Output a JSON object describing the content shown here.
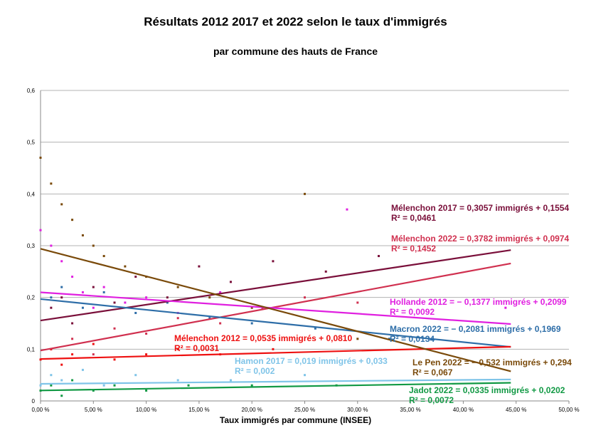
{
  "title": "Résultats 2012 2017 et 2022 selon le taux d'immigrés",
  "subtitle": "par commune des hauts de France",
  "chart_data": {
    "type": "scatter",
    "title": "Résultats 2012 2017 et 2022 selon le taux d'immigrés",
    "subtitle": "par commune des hauts de France",
    "xlabel": "Taux immigrés par commune (INSEE)",
    "ylabel": "",
    "xlim": [
      0,
      0.5
    ],
    "ylim": [
      0,
      0.6
    ],
    "x_ticks": [
      "0,00 %",
      "5,00 %",
      "10,00 %",
      "15,00 %",
      "20,00 %",
      "25,00 %",
      "30,00 %",
      "35,00 %",
      "40,00 %",
      "45,00 %",
      "50,00 %"
    ],
    "y_ticks": [
      "0",
      "0,1",
      "0,2",
      "0,3",
      "0,4",
      "0,5",
      "0,6"
    ],
    "grid": true,
    "series": [
      {
        "color": "#7a0f3a",
        "slope": 0.3057,
        "intercept": 0.1554,
        "equation": "Mélenchon 2017 = 0,3057 immigrés + 0,1554",
        "r2": "R² = 0,0461",
        "points": [
          [
            0.01,
            0.18
          ],
          [
            0.02,
            0.2
          ],
          [
            0.03,
            0.15
          ],
          [
            0.05,
            0.22
          ],
          [
            0.07,
            0.19
          ],
          [
            0.09,
            0.24
          ],
          [
            0.12,
            0.2
          ],
          [
            0.15,
            0.26
          ],
          [
            0.18,
            0.23
          ],
          [
            0.22,
            0.27
          ],
          [
            0.27,
            0.25
          ],
          [
            0.32,
            0.28
          ]
        ]
      },
      {
        "color": "#d0304f",
        "slope": 0.3782,
        "intercept": 0.0974,
        "equation": "Mélenchon 2022 = 0,3782 immigrés + 0,0974",
        "r2": "R² = 0,1452",
        "points": [
          [
            0.01,
            0.1
          ],
          [
            0.03,
            0.12
          ],
          [
            0.05,
            0.09
          ],
          [
            0.07,
            0.14
          ],
          [
            0.1,
            0.13
          ],
          [
            0.13,
            0.16
          ],
          [
            0.17,
            0.15
          ],
          [
            0.21,
            0.18
          ],
          [
            0.25,
            0.2
          ],
          [
            0.3,
            0.19
          ]
        ]
      },
      {
        "color": "#e020e0",
        "slope": -0.1377,
        "intercept": 0.2099,
        "equation": "Hollande 2012 = − 0,1377 immigrés + 0,2099",
        "r2": "R² = 0,0092",
        "points": [
          [
            0.0,
            0.33
          ],
          [
            0.01,
            0.3
          ],
          [
            0.02,
            0.27
          ],
          [
            0.03,
            0.24
          ],
          [
            0.04,
            0.21
          ],
          [
            0.05,
            0.18
          ],
          [
            0.06,
            0.22
          ],
          [
            0.08,
            0.19
          ],
          [
            0.1,
            0.2
          ],
          [
            0.13,
            0.17
          ],
          [
            0.17,
            0.21
          ],
          [
            0.29,
            0.37
          ],
          [
            0.44,
            0.18
          ]
        ]
      },
      {
        "color": "#2e6ea8",
        "slope": -0.2081,
        "intercept": 0.1969,
        "equation": "Macron 2022 = − 0,2081 immigrés + 0,1969",
        "r2": "R² = 0,0134",
        "points": [
          [
            0.01,
            0.2
          ],
          [
            0.02,
            0.22
          ],
          [
            0.04,
            0.18
          ],
          [
            0.06,
            0.21
          ],
          [
            0.09,
            0.17
          ],
          [
            0.12,
            0.19
          ],
          [
            0.16,
            0.16
          ],
          [
            0.2,
            0.15
          ],
          [
            0.26,
            0.14
          ],
          [
            0.33,
            0.12
          ]
        ]
      },
      {
        "color": "#ee1111",
        "slope": 0.0535,
        "intercept": 0.081,
        "equation": "Mélenchon 2012 = 0,0535 immigrés + 0,0810",
        "r2": "R² = 0,0031",
        "points": [
          [
            0.0,
            0.08
          ],
          [
            0.01,
            0.1
          ],
          [
            0.02,
            0.07
          ],
          [
            0.03,
            0.09
          ],
          [
            0.05,
            0.11
          ],
          [
            0.07,
            0.08
          ],
          [
            0.1,
            0.09
          ],
          [
            0.13,
            0.1
          ],
          [
            0.17,
            0.09
          ],
          [
            0.22,
            0.1
          ]
        ]
      },
      {
        "color": "#7fc4e8",
        "slope": 0.019,
        "intercept": 0.033,
        "equation": "Hamon 2017 = 0,019 immigrés + 0,033",
        "r2": "R² = 0,002",
        "points": [
          [
            0.0,
            0.03
          ],
          [
            0.01,
            0.05
          ],
          [
            0.02,
            0.04
          ],
          [
            0.04,
            0.06
          ],
          [
            0.06,
            0.03
          ],
          [
            0.09,
            0.05
          ],
          [
            0.13,
            0.04
          ],
          [
            0.18,
            0.04
          ],
          [
            0.25,
            0.05
          ]
        ]
      },
      {
        "color": "#7a4a0a",
        "slope": -0.532,
        "intercept": 0.294,
        "equation": "Le Pen 2022 = − 0,532 immigrés + 0,294",
        "r2": "R² = 0,067",
        "points": [
          [
            0.0,
            0.47
          ],
          [
            0.01,
            0.42
          ],
          [
            0.02,
            0.38
          ],
          [
            0.03,
            0.35
          ],
          [
            0.04,
            0.32
          ],
          [
            0.05,
            0.3
          ],
          [
            0.06,
            0.28
          ],
          [
            0.08,
            0.26
          ],
          [
            0.1,
            0.24
          ],
          [
            0.13,
            0.22
          ],
          [
            0.16,
            0.2
          ],
          [
            0.2,
            0.18
          ],
          [
            0.25,
            0.4
          ],
          [
            0.3,
            0.12
          ]
        ]
      },
      {
        "color": "#119944",
        "slope": 0.0335,
        "intercept": 0.0202,
        "equation": "Jadot 2022 = 0,0335 immigrés + 0,0202",
        "r2": "R² = 0,0072",
        "points": [
          [
            0.0,
            0.02
          ],
          [
            0.01,
            0.03
          ],
          [
            0.02,
            0.01
          ],
          [
            0.03,
            0.04
          ],
          [
            0.05,
            0.02
          ],
          [
            0.07,
            0.03
          ],
          [
            0.1,
            0.02
          ],
          [
            0.14,
            0.03
          ],
          [
            0.2,
            0.03
          ],
          [
            0.28,
            0.03
          ]
        ]
      }
    ]
  }
}
